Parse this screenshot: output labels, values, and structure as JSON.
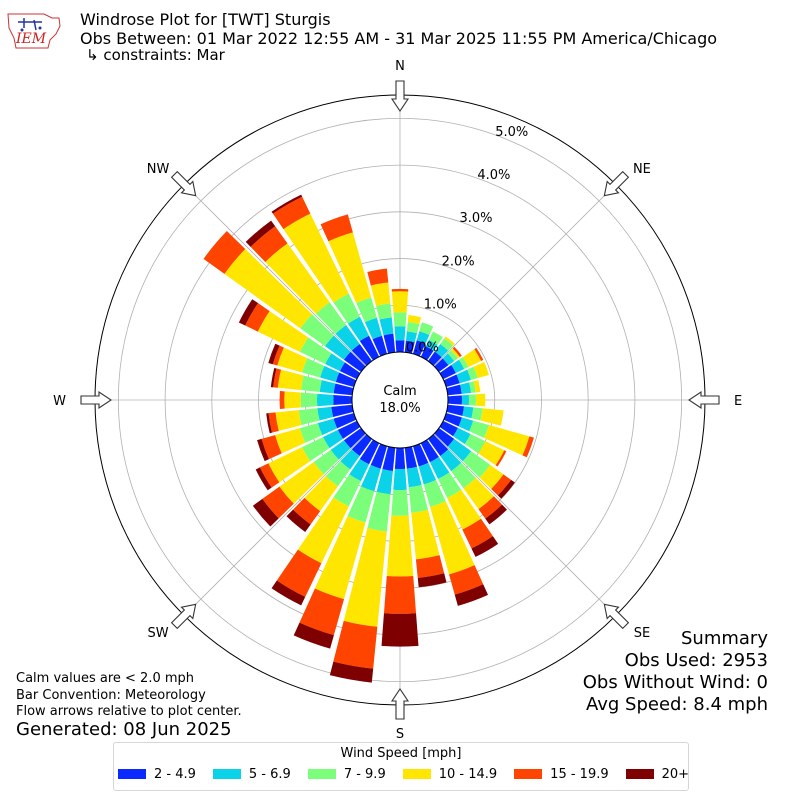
{
  "header": {
    "title": "Windrose Plot for [TWT] Sturgis",
    "subtitle": "Obs Between: 01 Mar 2022 12:55 AM - 31 Mar 2025 11:55 PM America/Chicago",
    "constraints": "↳ constraints: Mar",
    "logo_text": "IEM"
  },
  "summary": {
    "heading": "Summary",
    "obs_used": "Obs Used: 2953",
    "obs_without_wind": "Obs Without Wind: 0",
    "avg_speed": "Avg Speed: 8.4 mph"
  },
  "notes": {
    "calm_def": "Calm values are < 2.0 mph",
    "bar_convention": "Bar Convention: Meteorology",
    "flow_arrows": "Flow arrows relative to plot center.",
    "generated": "Generated: 08 Jun 2025"
  },
  "chart_data": {
    "type": "windrose",
    "calm_label": "Calm",
    "calm_value": "18.0%",
    "radial_ticks": [
      "0.0%",
      "1.0%",
      "2.0%",
      "3.0%",
      "4.0%",
      "5.0%"
    ],
    "radial_max_pct": 5.5,
    "directions": [
      "N",
      "NE",
      "E",
      "SE",
      "S",
      "SW",
      "W",
      "NW"
    ],
    "legend_title": "Wind Speed [mph]",
    "bins": [
      {
        "label": "2 - 4.9",
        "color": "#0a2aff"
      },
      {
        "label": "5 - 6.9",
        "color": "#0ad2e8"
      },
      {
        "label": "7 - 9.9",
        "color": "#7bff7b"
      },
      {
        "label": "10 - 14.9",
        "color": "#ffe600"
      },
      {
        "label": "15 - 19.9",
        "color": "#ff4400"
      },
      {
        "label": "20+",
        "color": "#7f0000"
      }
    ],
    "sectors": [
      {
        "dir_deg": 0,
        "values": [
          0.25,
          0.3,
          0.3,
          0.45,
          0.05,
          0
        ]
      },
      {
        "dir_deg": 10,
        "values": [
          0.25,
          0.2,
          0.2,
          0.15,
          0.0,
          0
        ]
      },
      {
        "dir_deg": 20,
        "values": [
          0.3,
          0.2,
          0.2,
          0.0,
          0.0,
          0
        ]
      },
      {
        "dir_deg": 30,
        "values": [
          0.25,
          0.15,
          0.2,
          0.0,
          0.0,
          0
        ]
      },
      {
        "dir_deg": 40,
        "values": [
          0.25,
          0.2,
          0.15,
          0.05,
          0.0,
          0
        ]
      },
      {
        "dir_deg": 50,
        "values": [
          0.25,
          0.15,
          0.1,
          0.05,
          0.05,
          0
        ]
      },
      {
        "dir_deg": 60,
        "values": [
          0.3,
          0.2,
          0.1,
          0.3,
          0.05,
          0
        ]
      },
      {
        "dir_deg": 70,
        "values": [
          0.3,
          0.25,
          0.15,
          0.25,
          0.0,
          0
        ]
      },
      {
        "dir_deg": 80,
        "values": [
          0.3,
          0.2,
          0.1,
          0.1,
          0.0,
          0
        ]
      },
      {
        "dir_deg": 90,
        "values": [
          0.3,
          0.15,
          0.15,
          0.2,
          0.0,
          0
        ]
      },
      {
        "dir_deg": 100,
        "values": [
          0.35,
          0.2,
          0.2,
          0.45,
          0.0,
          0
        ]
      },
      {
        "dir_deg": 110,
        "values": [
          0.35,
          0.25,
          0.35,
          0.9,
          0.1,
          0
        ]
      },
      {
        "dir_deg": 120,
        "values": [
          0.35,
          0.3,
          0.35,
          0.45,
          0.05,
          0
        ]
      },
      {
        "dir_deg": 130,
        "values": [
          0.4,
          0.45,
          0.5,
          0.35,
          0.2,
          0.1
        ]
      },
      {
        "dir_deg": 140,
        "values": [
          0.45,
          0.4,
          0.45,
          0.55,
          0.25,
          0.15
        ]
      },
      {
        "dir_deg": 150,
        "values": [
          0.45,
          0.4,
          0.45,
          0.75,
          0.45,
          0.2
        ]
      },
      {
        "dir_deg": 160,
        "values": [
          0.45,
          0.4,
          0.5,
          1.5,
          0.45,
          0.25
        ]
      },
      {
        "dir_deg": 170,
        "values": [
          0.45,
          0.4,
          0.55,
          1.0,
          0.4,
          0.2
        ]
      },
      {
        "dir_deg": 180,
        "values": [
          0.45,
          0.45,
          0.55,
          1.3,
          0.8,
          0.7
        ]
      },
      {
        "dir_deg": 190,
        "values": [
          0.5,
          0.5,
          0.8,
          2.05,
          0.9,
          0.3
        ]
      },
      {
        "dir_deg": 200,
        "values": [
          0.5,
          0.5,
          0.7,
          1.7,
          0.8,
          0.3
        ]
      },
      {
        "dir_deg": 210,
        "values": [
          0.5,
          0.4,
          0.6,
          1.35,
          0.8,
          0.2
        ]
      },
      {
        "dir_deg": 220,
        "values": [
          0.45,
          0.35,
          0.45,
          0.65,
          0.35,
          0.2
        ]
      },
      {
        "dir_deg": 230,
        "values": [
          0.45,
          0.35,
          0.45,
          0.9,
          0.45,
          0.25
        ]
      },
      {
        "dir_deg": 240,
        "values": [
          0.45,
          0.35,
          0.5,
          0.8,
          0.2,
          0.1
        ]
      },
      {
        "dir_deg": 250,
        "values": [
          0.45,
          0.35,
          0.4,
          0.55,
          0.3,
          0.1
        ]
      },
      {
        "dir_deg": 260,
        "values": [
          0.45,
          0.3,
          0.4,
          0.5,
          0.15,
          0.05
        ]
      },
      {
        "dir_deg": 270,
        "values": [
          0.4,
          0.35,
          0.35,
          0.35,
          0.1,
          0
        ]
      },
      {
        "dir_deg": 280,
        "values": [
          0.4,
          0.3,
          0.4,
          0.5,
          0.1,
          0.05
        ]
      },
      {
        "dir_deg": 290,
        "values": [
          0.4,
          0.35,
          0.4,
          0.55,
          0.1,
          0.1
        ]
      },
      {
        "dir_deg": 300,
        "values": [
          0.4,
          0.35,
          0.6,
          1.0,
          0.3,
          0.15
        ]
      },
      {
        "dir_deg": 310,
        "values": [
          0.45,
          0.5,
          0.65,
          2.0,
          0.55,
          0.0
        ]
      },
      {
        "dir_deg": 320,
        "values": [
          0.45,
          0.5,
          0.6,
          1.55,
          0.45,
          0.15
        ]
      },
      {
        "dir_deg": 330,
        "values": [
          0.5,
          0.45,
          0.55,
          1.9,
          0.4,
          0.05
        ]
      },
      {
        "dir_deg": 340,
        "values": [
          0.4,
          0.4,
          0.45,
          1.45,
          0.4,
          0
        ]
      },
      {
        "dir_deg": 350,
        "values": [
          0.4,
          0.35,
          0.3,
          0.45,
          0.3,
          0
        ]
      }
    ]
  }
}
